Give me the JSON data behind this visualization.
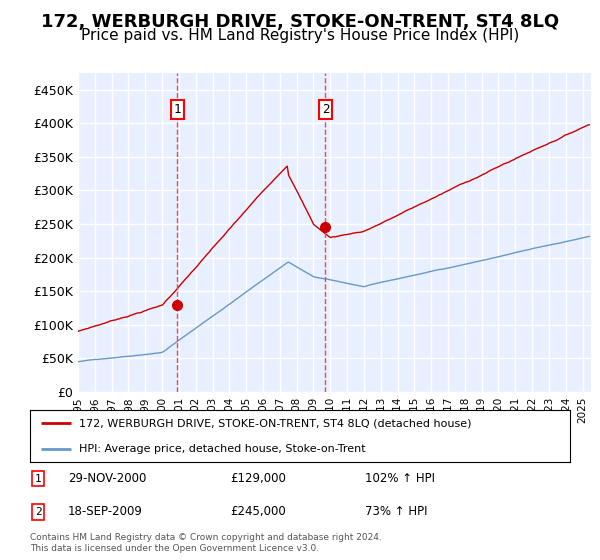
{
  "title": "172, WERBURGH DRIVE, STOKE-ON-TRENT, ST4 8LQ",
  "subtitle": "Price paid vs. HM Land Registry's House Price Index (HPI)",
  "title_fontsize": 13,
  "subtitle_fontsize": 11,
  "background_color": "#ffffff",
  "plot_bg_color": "#e8f0ff",
  "grid_color": "#ffffff",
  "ylabel_ticks": [
    "£0",
    "£50K",
    "£100K",
    "£150K",
    "£200K",
    "£250K",
    "£300K",
    "£350K",
    "£400K",
    "£450K"
  ],
  "ytick_values": [
    0,
    50000,
    100000,
    150000,
    200000,
    250000,
    300000,
    350000,
    400000,
    450000
  ],
  "ylim": [
    0,
    475000
  ],
  "xlim_start": 1995.0,
  "xlim_end": 2025.5,
  "xtick_years": [
    1995,
    1996,
    1997,
    1998,
    1999,
    2000,
    2001,
    2002,
    2003,
    2004,
    2005,
    2006,
    2007,
    2008,
    2009,
    2010,
    2011,
    2012,
    2013,
    2014,
    2015,
    2016,
    2017,
    2018,
    2019,
    2020,
    2021,
    2022,
    2023,
    2024,
    2025
  ],
  "sale1_x": 2000.91,
  "sale1_y": 129000,
  "sale2_x": 2009.71,
  "sale2_y": 245000,
  "sale1_date": "29-NOV-2000",
  "sale1_price": "£129,000",
  "sale1_hpi": "102% ↑ HPI",
  "sale2_date": "18-SEP-2009",
  "sale2_price": "£245,000",
  "sale2_hpi": "73% ↑ HPI",
  "legend_line1": "172, WERBURGH DRIVE, STOKE-ON-TRENT, ST4 8LQ (detached house)",
  "legend_line2": "HPI: Average price, detached house, Stoke-on-Trent",
  "footer": "Contains HM Land Registry data © Crown copyright and database right 2024.\nThis data is licensed under the Open Government Licence v3.0.",
  "red_line_color": "#cc0000",
  "blue_line_color": "#6699cc",
  "vline_color": "#ff4444"
}
